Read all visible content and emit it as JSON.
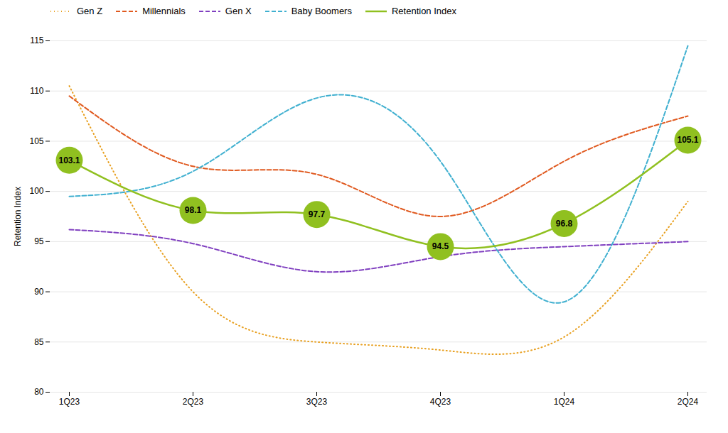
{
  "chart_data": {
    "type": "line",
    "categories": [
      "1Q23",
      "2Q23",
      "3Q23",
      "4Q23",
      "1Q24",
      "2Q24"
    ],
    "ylabel": "Retention Index",
    "ylim": [
      80,
      115
    ],
    "yticks": [
      80,
      85,
      90,
      95,
      100,
      105,
      110,
      115
    ],
    "grid": true,
    "legend": "top",
    "series": [
      {
        "name": "Gen Z",
        "color": "#E8A020",
        "line_style": "dotted",
        "values": [
          110.5,
          90.0,
          85.0,
          84.2,
          85.5,
          99.0
        ]
      },
      {
        "name": "Millennials",
        "color": "#E05A20",
        "line_style": "dashed",
        "values": [
          109.5,
          102.5,
          101.7,
          97.5,
          103.0,
          107.5
        ]
      },
      {
        "name": "Gen X",
        "color": "#8040C0",
        "line_style": "dashed",
        "values": [
          96.2,
          94.8,
          92.0,
          93.5,
          94.5,
          95.0
        ]
      },
      {
        "name": "Baby Boomers",
        "color": "#40B0D0",
        "line_style": "dashed",
        "values": [
          99.5,
          102.0,
          109.3,
          103.0,
          89.0,
          114.5
        ]
      },
      {
        "name": "Retention Index",
        "color": "#90C020",
        "line_style": "solid",
        "marker": "circle",
        "data_labels": true,
        "values": [
          103.1,
          98.1,
          97.7,
          94.5,
          96.8,
          105.1
        ]
      }
    ]
  }
}
